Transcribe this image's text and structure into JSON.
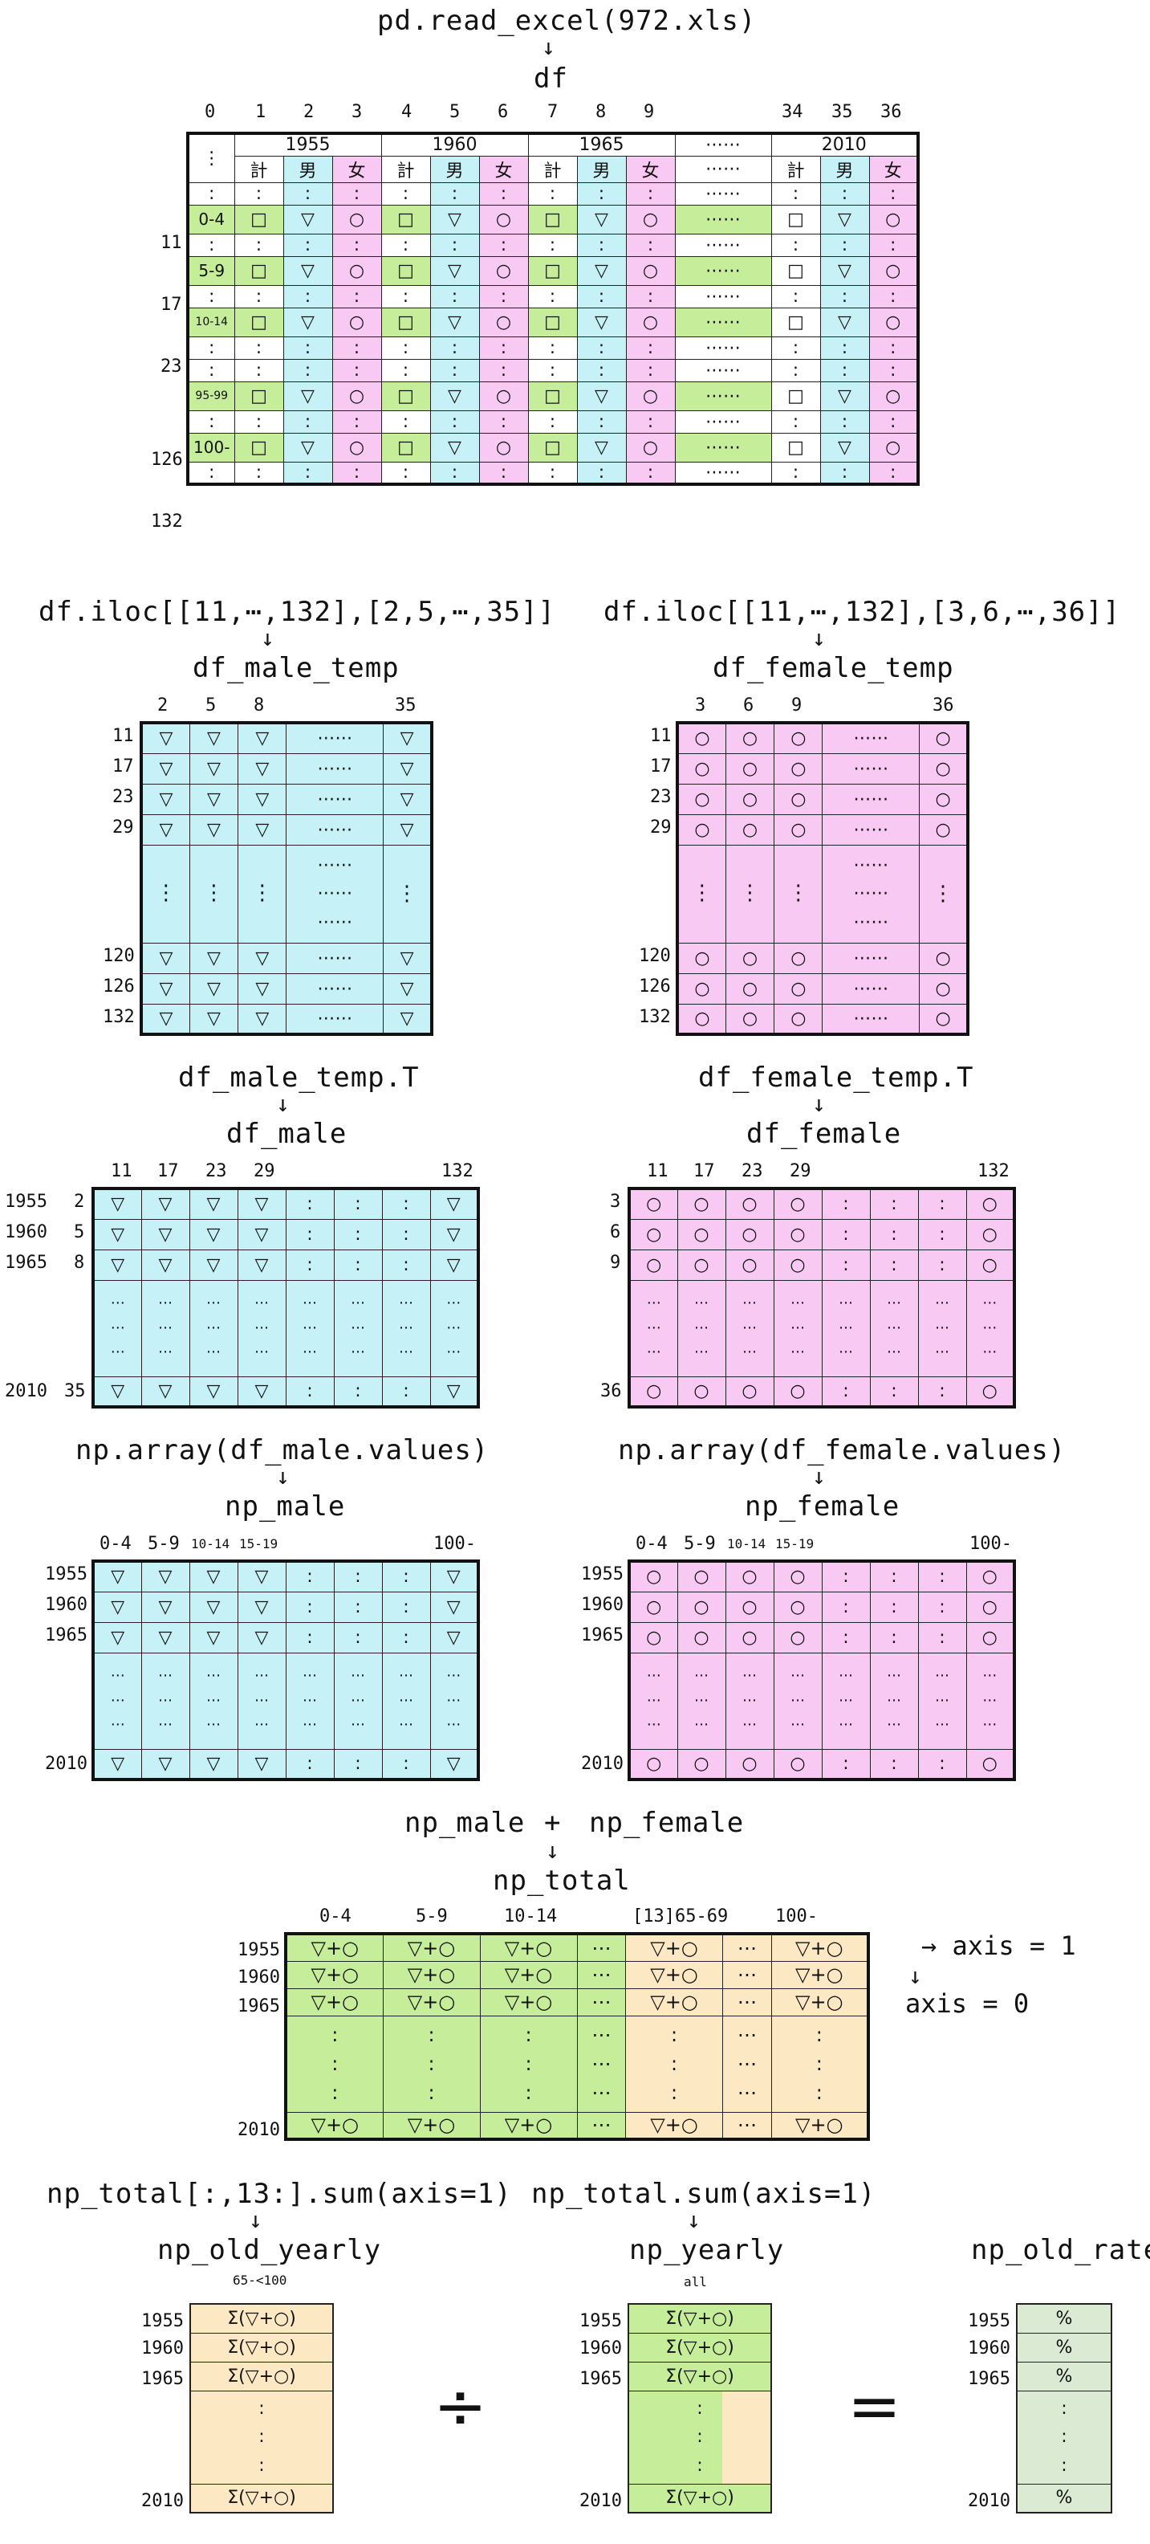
{
  "top": {
    "code": "pd.read_excel(972.xls)",
    "arrow": "↓",
    "name": "df",
    "col_indices": [
      "0",
      "1",
      "2",
      "3",
      "4",
      "5",
      "6",
      "7",
      "8",
      "9",
      "34",
      "35",
      "36"
    ],
    "years": [
      "1955",
      "1960",
      "1965",
      "2010"
    ],
    "ellipsis": "⋯⋯",
    "gender": {
      "total": "計",
      "male": "男",
      "female": "女"
    },
    "row_indices": [
      "11",
      "17",
      "23",
      "126",
      "132"
    ],
    "age_labels": [
      "0-4",
      "5-9",
      "10-14",
      "95-99",
      "100-"
    ],
    "sym": {
      "square": "□",
      "tri": "▽",
      "circ": "○",
      "dot": ":",
      "vdots": "⋮"
    }
  },
  "male_temp": {
    "code": "df.iloc[[11,⋯,132],[2,5,⋯,35]]",
    "arrow": "↓",
    "name": "df_male_temp",
    "cols": [
      "2",
      "5",
      "8",
      "35"
    ],
    "rows": [
      "11",
      "17",
      "23",
      "29",
      "120",
      "126",
      "132"
    ]
  },
  "female_temp": {
    "code": "df.iloc[[11,⋯,132],[3,6,⋯,36]]",
    "arrow": "↓",
    "name": "df_female_temp",
    "cols": [
      "3",
      "6",
      "9",
      "36"
    ],
    "rows": [
      "11",
      "17",
      "23",
      "29",
      "120",
      "126",
      "132"
    ]
  },
  "male": {
    "code": "df_male_temp.T",
    "arrow": "↓",
    "name": "df_male",
    "cols": [
      "11",
      "17",
      "23",
      "29",
      "132"
    ],
    "rows": [
      "2",
      "5",
      "8",
      "35"
    ],
    "years": [
      "1955",
      "1960",
      "1965",
      "2010"
    ]
  },
  "female": {
    "code": "df_female_temp.T",
    "arrow": "↓",
    "name": "df_female",
    "cols": [
      "11",
      "17",
      "23",
      "29",
      "132"
    ],
    "rows": [
      "3",
      "6",
      "9",
      "36"
    ]
  },
  "np_male": {
    "code": "np.array(df_male.values)",
    "arrow": "↓",
    "name": "np_male",
    "cols": [
      "0-4",
      "5-9",
      "10-14",
      "15-19",
      "100-"
    ],
    "years": [
      "1955",
      "1960",
      "1965",
      "2010"
    ]
  },
  "np_female": {
    "code": "np.array(df_female.values)",
    "arrow": "↓",
    "name": "np_female",
    "cols": [
      "0-4",
      "5-9",
      "10-14",
      "15-19",
      "100-"
    ],
    "years": [
      "1955",
      "1960",
      "1965",
      "2010"
    ]
  },
  "total": {
    "plus_left": "np_male",
    "plus": "+",
    "plus_right": "np_female",
    "arrow": "↓",
    "name": "np_total",
    "cols": [
      "0-4",
      "5-9",
      "10-14",
      "[13]65-69",
      "100-"
    ],
    "years": [
      "1955",
      "1960",
      "1965",
      "2010"
    ],
    "cell": "▽+○",
    "hdots": "⋯",
    "axis1": "→ axis = 1",
    "axis0_arrow": "↓",
    "axis0": "axis = 0"
  },
  "bottom": {
    "old_code": "np_total[:,13:].sum(axis=1)",
    "old_arrow": "↓",
    "old_name": "np_old_yearly",
    "old_sub": "65-<100",
    "yearly_code": "np_total.sum(axis=1)",
    "yearly_arrow": "↓",
    "yearly_name": "np_yearly",
    "yearly_sub": "all",
    "rate_name": "np_old_rate",
    "sum_cell": "Σ(▽+○)",
    "pct": "%",
    "divide": "÷",
    "equals": "=",
    "years": [
      "1955",
      "1960",
      "1965",
      "2010"
    ]
  },
  "colors": {
    "male": "#c6f1f6",
    "female": "#f8c9f3",
    "total_row": "#c6ee9a",
    "old": "#fde8c4",
    "rate": "#dbead3"
  }
}
